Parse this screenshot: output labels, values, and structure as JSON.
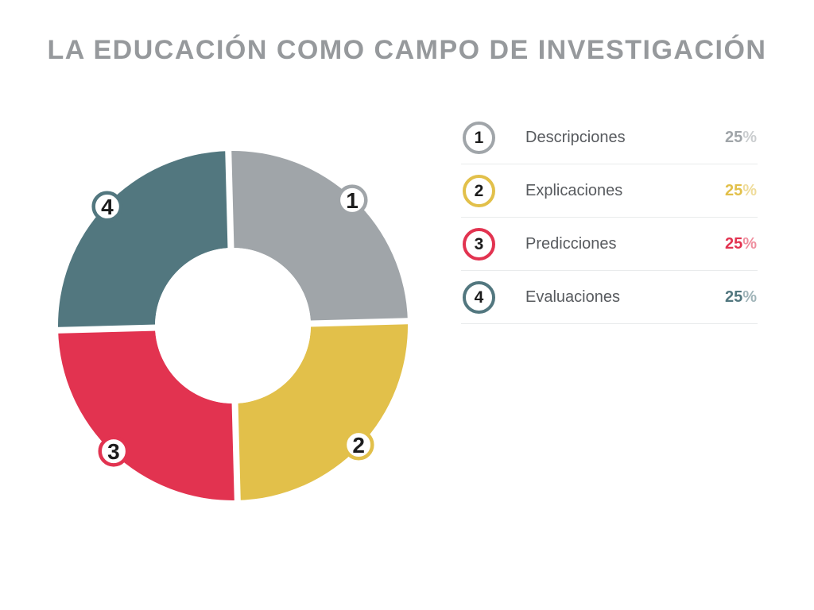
{
  "chart_data": {
    "type": "pie",
    "subtype": "donut",
    "title": "LA EDUCACIÓN COMO CAMPO DE INVESTIGACIÓN",
    "categories": [
      "Descripciones",
      "Explicaciones",
      "Predicciones",
      "Evaluaciones"
    ],
    "values": [
      25,
      25,
      25,
      25
    ],
    "unit": "%",
    "segments": [
      {
        "id": "1",
        "label": "Descripciones",
        "value": "25",
        "unit": "%",
        "color": "#a0a5a9"
      },
      {
        "id": "2",
        "label": "Explicaciones",
        "value": "25",
        "unit": "%",
        "color": "#e2c04a"
      },
      {
        "id": "3",
        "label": "Predicciones",
        "value": "25",
        "unit": "%",
        "color": "#e23350"
      },
      {
        "id": "4",
        "label": "Evaluaciones",
        "value": "25",
        "unit": "%",
        "color": "#52777f"
      }
    ],
    "layout": {
      "legend_position": "right",
      "clockwise": true,
      "start_angle_deg": 0,
      "rotation_deg": -1.5,
      "inner_radius_ratio": 0.445,
      "badge_style": "numbered-circle",
      "grid": false
    },
    "colors": {
      "title": "#96999c",
      "legend_label": "#585b5f",
      "badge_number": "#1c1c1c",
      "separator": "#e9ebec",
      "background": "#ffffff"
    }
  }
}
